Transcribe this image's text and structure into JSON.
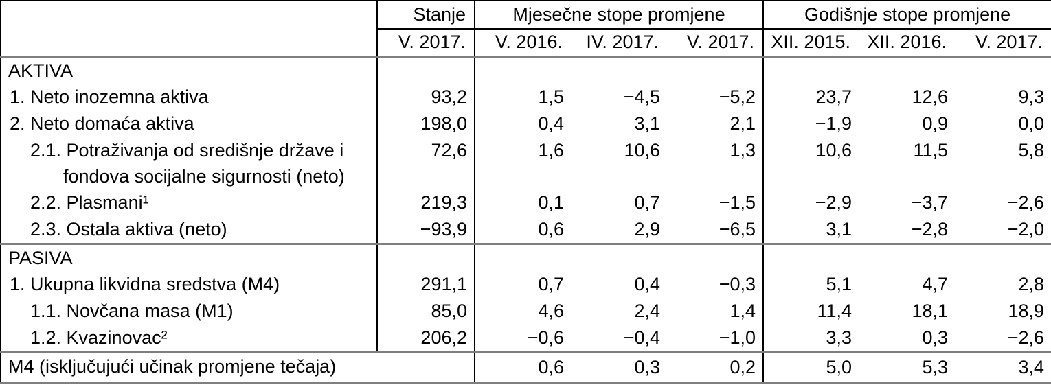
{
  "colors": {
    "background": "#ffffff",
    "text": "#000000",
    "grid_black": "#000000",
    "rule_gray": "#7f7f7f"
  },
  "chart_data": {
    "type": "table",
    "column_groups": {
      "stanje": "Stanje",
      "monthly": "Mjesečne stope promjene",
      "yearly": "Godišnje stope promjene"
    },
    "periods": {
      "stanje": "V. 2017.",
      "monthly": [
        "V. 2016.",
        "IV. 2017.",
        "V. 2017."
      ],
      "yearly": [
        "XII. 2015.",
        "XII. 2016.",
        "V. 2017."
      ]
    },
    "rows": [
      {
        "label": "AKTIVA",
        "style": "section",
        "values": [
          "",
          "",
          "",
          "",
          "",
          "",
          ""
        ]
      },
      {
        "label": "1. Neto inozemna aktiva",
        "style": "item",
        "values": [
          "93,2",
          "1,5",
          "−4,5",
          "−5,2",
          "23,7",
          "12,6",
          "9,3"
        ]
      },
      {
        "label": "2. Neto domaća aktiva",
        "style": "item",
        "values": [
          "198,0",
          "0,4",
          "3,1",
          "2,1",
          "−1,9",
          "0,9",
          "0,0"
        ]
      },
      {
        "label": "2.1. Potraživanja od središnje države i fondova socijalne sigurnosti (neto)",
        "style": "subitem-wrap",
        "values": [
          "72,6",
          "1,6",
          "10,6",
          "1,3",
          "10,6",
          "11,5",
          "5,8"
        ]
      },
      {
        "label": "2.2. Plasmani¹",
        "style": "subitem",
        "values": [
          "219,3",
          "0,1",
          "0,7",
          "−1,5",
          "−2,9",
          "−3,7",
          "−2,6"
        ]
      },
      {
        "label": "2.3. Ostala aktiva (neto)",
        "style": "subitem",
        "values": [
          "−93,9",
          "0,6",
          "2,9",
          "−6,5",
          "3,1",
          "−2,8",
          "−2,0"
        ]
      },
      {
        "label": "PASIVA",
        "style": "section",
        "break": true,
        "values": [
          "",
          "",
          "",
          "",
          "",
          "",
          ""
        ]
      },
      {
        "label": "1. Ukupna likvidna sredstva (M4)",
        "style": "item",
        "values": [
          "291,1",
          "0,7",
          "0,4",
          "−0,3",
          "5,1",
          "4,7",
          "2,8"
        ]
      },
      {
        "label": "1.1. Novčana masa (M1)",
        "style": "subitem",
        "values": [
          "85,0",
          "4,6",
          "2,4",
          "1,4",
          "11,4",
          "18,1",
          "18,9"
        ]
      },
      {
        "label": "1.2. Kvazinovac²",
        "style": "subitem",
        "values": [
          "206,2",
          "−0,6",
          "−0,4",
          "−1,0",
          "3,3",
          "0,3",
          "−2,6"
        ]
      }
    ],
    "footer_row": {
      "label": "M4 (isključujući učinak promjene tečaja)",
      "values": [
        "0,6",
        "0,3",
        "0,2",
        "5,0",
        "5,3",
        "3,4"
      ]
    }
  }
}
